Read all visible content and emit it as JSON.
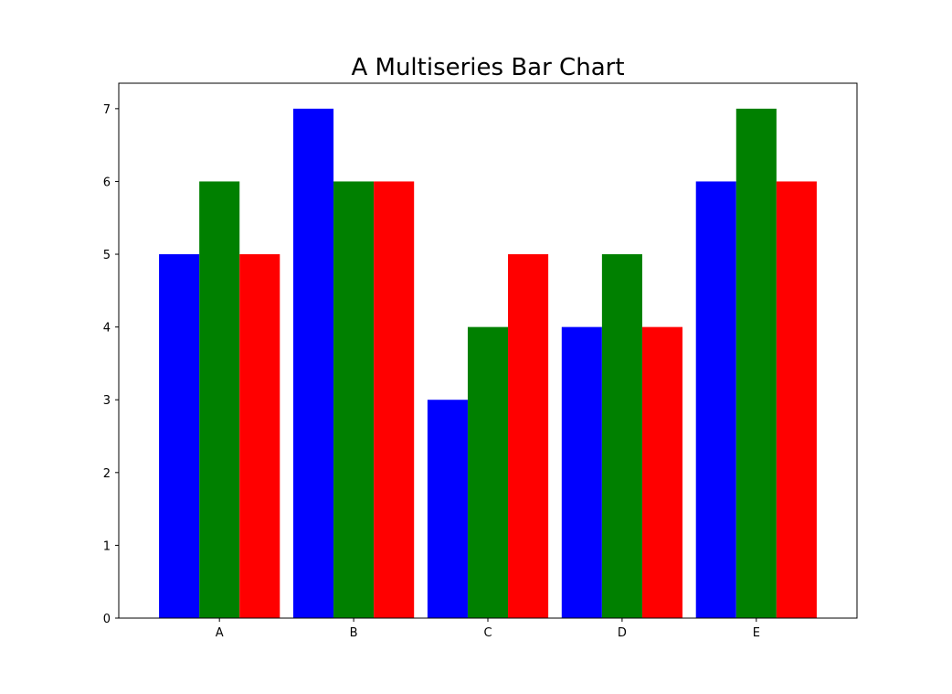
{
  "chart_data": {
    "type": "bar",
    "title": "A Multiseries Bar Chart",
    "xlabel": "",
    "ylabel": "",
    "categories": [
      "A",
      "B",
      "C",
      "D",
      "E"
    ],
    "series": [
      {
        "values": [
          5,
          7,
          3,
          4,
          6
        ],
        "color": "#0000ff"
      },
      {
        "values": [
          6,
          6,
          4,
          5,
          7
        ],
        "color": "#008000"
      },
      {
        "values": [
          5,
          6,
          5,
          4,
          6
        ],
        "color": "#ff0000"
      }
    ],
    "yticks": [
      0,
      1,
      2,
      3,
      4,
      5,
      6,
      7
    ],
    "ylim": [
      0,
      7.35
    ],
    "grid": false,
    "legend": "none"
  }
}
